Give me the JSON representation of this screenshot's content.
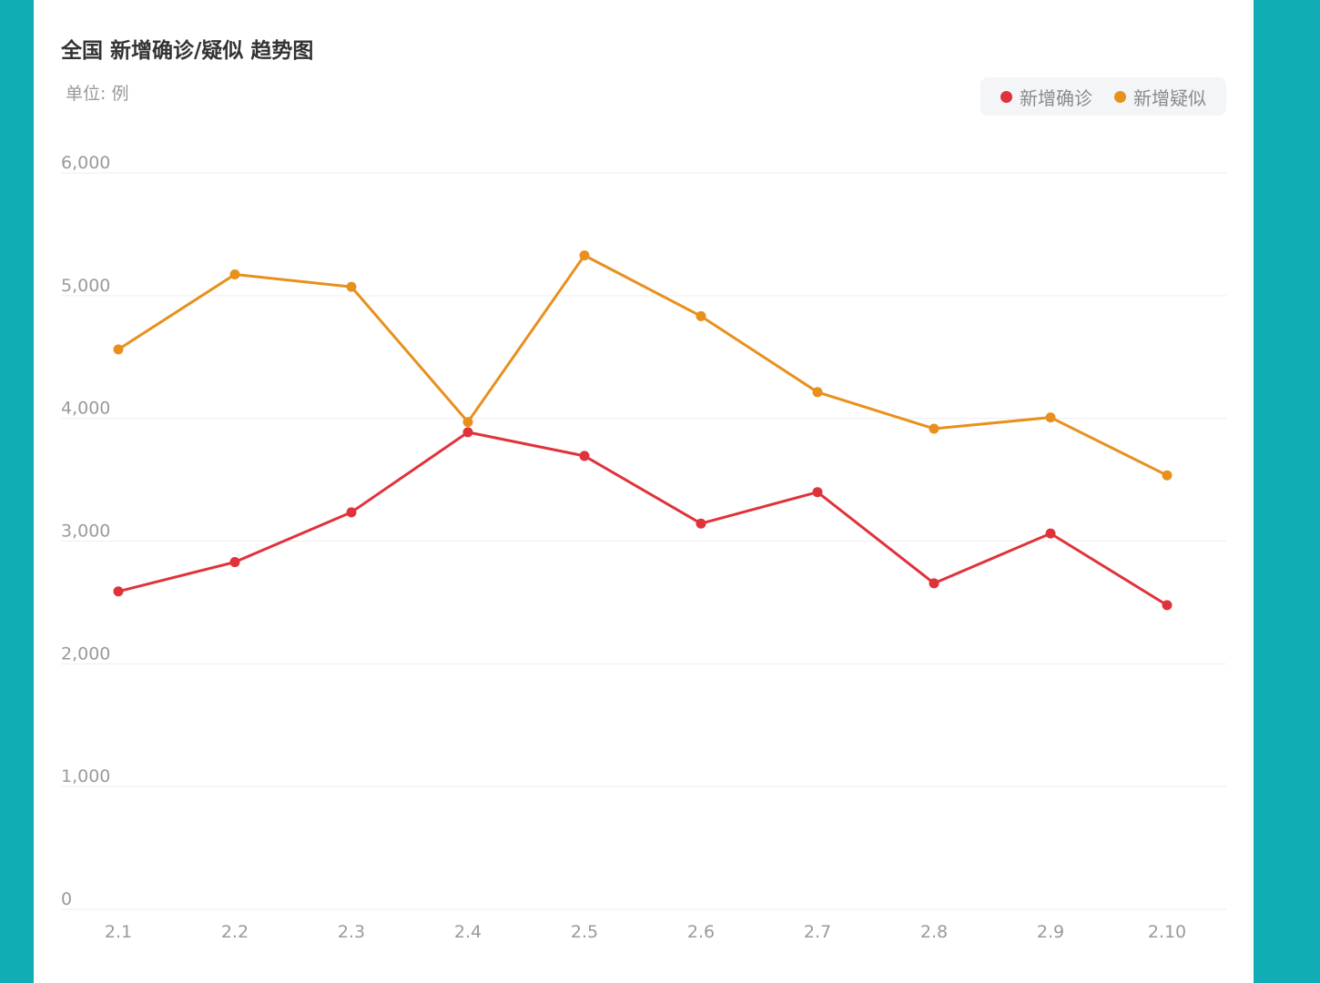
{
  "chart": {
    "title": "全国 新增确诊/疑似 趋势图",
    "unit_label": "单位: 例"
  },
  "colors": {
    "confirmed": "#e0323a",
    "suspected": "#e8901c",
    "grid": "#eeeeee",
    "tick_text": "#9a9a9a"
  },
  "chart_data": {
    "type": "line",
    "title": "全国 新增确诊/疑似 趋势图",
    "categories": [
      "2.1",
      "2.2",
      "2.3",
      "2.4",
      "2.5",
      "2.6",
      "2.7",
      "2.8",
      "2.9",
      "2.10"
    ],
    "series": [
      {
        "name": "新增确诊",
        "color": "#e0323a",
        "values": [
          2590,
          2829,
          3235,
          3887,
          3694,
          3143,
          3399,
          2656,
          3062,
          2478
        ]
      },
      {
        "name": "新增疑似",
        "color": "#e8901c",
        "values": [
          4562,
          5173,
          5072,
          3971,
          5328,
          4833,
          4214,
          3916,
          4008,
          3536
        ]
      }
    ],
    "y_ticks": [
      "0",
      "1,000",
      "2,000",
      "3,000",
      "4,000",
      "5,000",
      "6,000"
    ],
    "ylim": [
      0,
      6000
    ],
    "grid": true,
    "legend_position": "top-right"
  }
}
